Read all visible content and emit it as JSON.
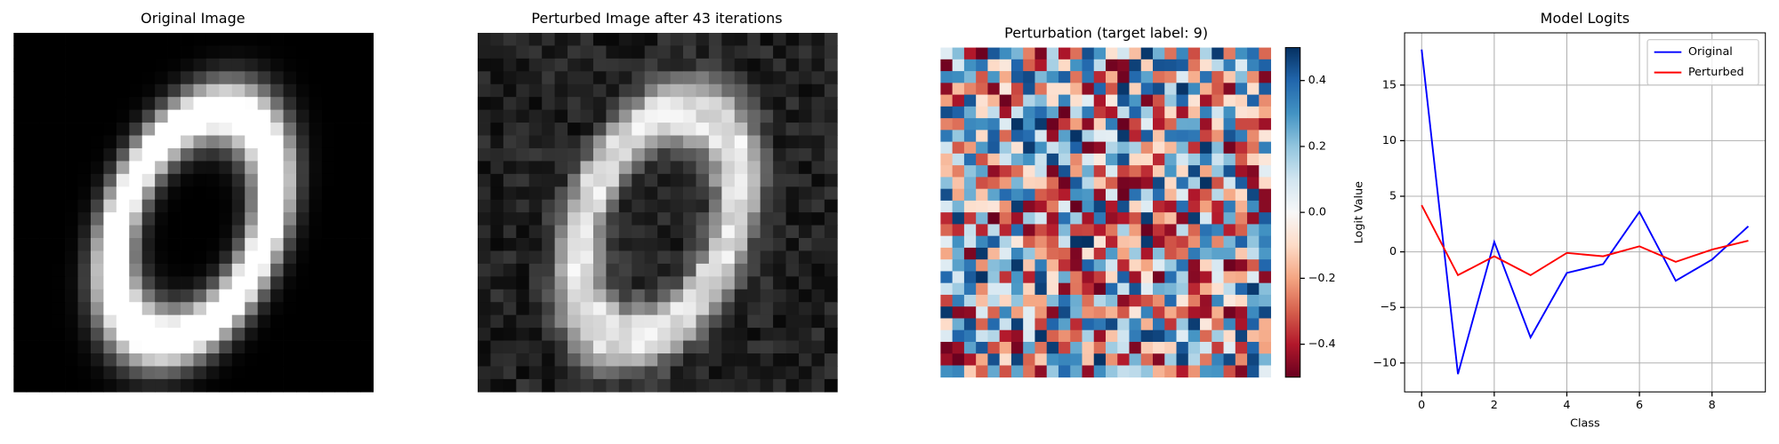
{
  "chart_data": [
    {
      "type": "image",
      "title": "Original Image"
    },
    {
      "type": "image",
      "title": "Perturbed Image after 43 iterations"
    },
    {
      "type": "heatmap",
      "title": "Perturbation (target label: 9)",
      "clim": [
        -0.5,
        0.5
      ],
      "cticks": [
        {
          "value": -0.4,
          "label": "−0.4"
        },
        {
          "value": -0.2,
          "label": "−0.2"
        },
        {
          "value": 0,
          "label": "0.0"
        },
        0.2,
        0.4
      ]
    },
    {
      "type": "line",
      "title": "Model Logits",
      "xlabel": "Class",
      "ylabel": "Logit Value",
      "x": [
        0,
        1,
        2,
        3,
        4,
        5,
        6,
        7,
        8,
        9
      ],
      "series": [
        {
          "name": "Original",
          "color": "#0000ff",
          "values": [
            18.2,
            -11.0,
            0.9,
            -7.7,
            -1.9,
            -1.1,
            3.6,
            -2.6,
            -0.7,
            2.3
          ]
        },
        {
          "name": "Perturbed",
          "color": "#ff0000",
          "values": [
            4.2,
            -2.1,
            -0.4,
            -2.1,
            -0.1,
            -0.4,
            0.5,
            -0.9,
            0.2,
            1.0
          ]
        }
      ],
      "xlim": [
        -0.47,
        9.47
      ],
      "ylim": [
        -12.6,
        19.7
      ],
      "xticks": [
        0,
        2,
        4,
        6,
        8
      ],
      "yticks": [
        {
          "value": -10,
          "label": "−10"
        },
        {
          "value": -5,
          "label": "−5"
        },
        0,
        5,
        10,
        15
      ],
      "grid": true,
      "legend": "upper right"
    }
  ]
}
